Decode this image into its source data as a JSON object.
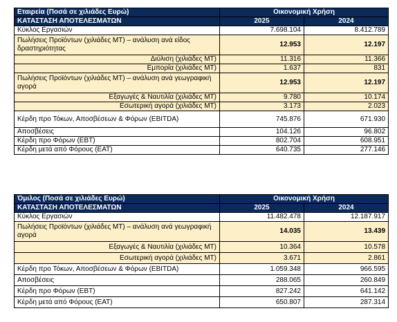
{
  "company": {
    "title": "Εταιρεία (Ποσά σε χιλιάδες Ευρώ)",
    "period_header": "Οικονομική Χρήση",
    "statement_title": "ΚΑΤΑΣΤΑΣΗ ΑΠΟΤΕΛΕΣΜΑΤΩΝ",
    "year_a": "2025",
    "year_b": "2024",
    "rows": [
      {
        "label": "Κύκλος Εργασιών",
        "a": "7.698.104",
        "b": "8.412.789"
      },
      {
        "label": "Πωλήσεις Προϊόντων (χιλιάδες ΜΤ) – ανάλυση ανά είδος δραστηριότητας",
        "a": "12.953",
        "b": "12.197"
      },
      {
        "label": "Διύλιση (χιλιάδες ΜΤ)",
        "a": "11.316",
        "b": "11.366"
      },
      {
        "label": "Εμπορία (χιλιάδες ΜΤ)",
        "a": "1.637",
        "b": "831"
      },
      {
        "label": "Πωλήσεις Προϊόντων (χιλιάδες ΜΤ) – ανάλυση ανά γεωγραφική αγορά",
        "a": "12.953",
        "b": "12.197"
      },
      {
        "label": "Εξαγωγές & Ναυτιλία (χιλιάδες ΜΤ)",
        "a": "9.780",
        "b": "10.174"
      },
      {
        "label": "Εσωτερική αγορά (χιλιάδες ΜΤ)",
        "a": "3.173",
        "b": "2.023"
      },
      {
        "label": "Κέρδη προ Τόκων, Αποσβέσεων & Φόρων (EBITDA)",
        "a": "745.876",
        "b": "671.930"
      },
      {
        "label": "Αποσβέσεις",
        "a": "104.126",
        "b": "96.802"
      },
      {
        "label": "Κέρδη προ Φόρων (EBT)",
        "a": "802.704",
        "b": "608.951"
      },
      {
        "label": "Κέρδη μετά από Φόρους (EAT)",
        "a": "640.735",
        "b": "277.146"
      }
    ]
  },
  "group": {
    "title": "Όμιλος (Ποσά σε χιλιάδες Ευρώ)",
    "period_header": "Οικονομική Χρήση",
    "statement_title": "ΚΑΤΑΣΤΑΣΗ ΑΠΟΤΕΛΕΣΜΑΤΩΝ",
    "year_a": "2025",
    "year_b": "2024",
    "rows": [
      {
        "label": "Κύκλος Εργασιών",
        "a": "11.482.478",
        "b": "12.187.917"
      },
      {
        "label": "Πωλήσεις Προϊόντων (χιλιάδες ΜΤ) – ανάλυση ανά γεωγραφική αγορά",
        "a": "14.035",
        "b": "13.439"
      },
      {
        "label": "Εξαγωγές & Ναυτιλία (χιλιάδες ΜΤ)",
        "a": "10.364",
        "b": "10.578"
      },
      {
        "label": "Εσωτερική αγορά (χιλιάδες ΜΤ)",
        "a": "3.671",
        "b": "2.861"
      },
      {
        "label": "Κέρδη προ Τόκων, Αποσβέσεων & Φόρων (EBITDA)",
        "a": "1.059.348",
        "b": "966.595"
      },
      {
        "label": "Αποσβέσεις",
        "a": "288.065",
        "b": "260.849"
      },
      {
        "label": "Κέρδη προ Φόρων (EBT)",
        "a": "827.242",
        "b": "641.142"
      },
      {
        "label": "Κέρδη μετά από Φόρους (EAT)",
        "a": "650.807",
        "b": "287.314"
      }
    ]
  }
}
